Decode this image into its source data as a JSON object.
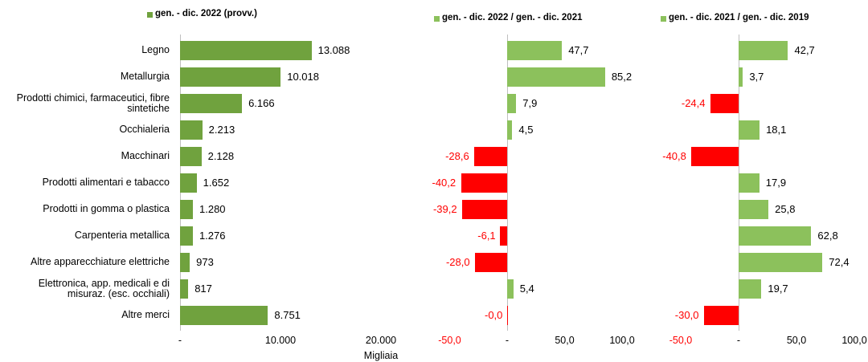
{
  "chart_data": [
    {
      "type": "hbar",
      "legend": "gen. - dic. 2022 (provv.)",
      "color": "#70a23e",
      "categories": [
        "Legno",
        "Metallurgia",
        "Prodotti chimici, farmaceutici, fibre sintetiche",
        "Occhialeria",
        "Macchinari",
        "Prodotti alimentari e tabacco",
        "Prodotti in gomma o plastica",
        "Carpenteria metallica",
        "Altre apparecchiature elettriche",
        "Elettronica, app. medicali e di misuraz. (esc. occhiali)",
        "Altre merci"
      ],
      "values": [
        13088,
        10018,
        6166,
        2213,
        2128,
        1652,
        1280,
        1276,
        973,
        817,
        8751
      ],
      "value_labels": [
        "13.088",
        "10.018",
        "6.166",
        "2.213",
        "2.128",
        "1.652",
        "1.280",
        "1.276",
        "973",
        "817",
        "8.751"
      ],
      "xlim": [
        0,
        20000
      ],
      "xticks": [
        {
          "value": 0,
          "label": "-"
        },
        {
          "value": 10000,
          "label": "10.000"
        },
        {
          "value": 20000,
          "label": "20.000"
        }
      ],
      "xlabel": "Migliaia"
    },
    {
      "type": "hbar",
      "legend": "gen. - dic. 2022 / gen. - dic. 2021",
      "color": "#8cc15c",
      "negative_color": "#ff0000",
      "values": [
        47.7,
        85.2,
        7.9,
        4.5,
        -28.6,
        -40.2,
        -39.2,
        -6.1,
        -28.0,
        5.4,
        -0.0
      ],
      "value_labels": [
        "47,7",
        "85,2",
        "7,9",
        "4,5",
        "-28,6",
        "-40,2",
        "-39,2",
        "-6,1",
        "-28,0",
        "5,4",
        "-0,0"
      ],
      "xlim": [
        -50,
        100
      ],
      "xticks": [
        {
          "value": -50,
          "label": "-50,0"
        },
        {
          "value": 0,
          "label": "-"
        },
        {
          "value": 50,
          "label": "50,0"
        },
        {
          "value": 100,
          "label": "100,0"
        }
      ]
    },
    {
      "type": "hbar",
      "legend": "gen. - dic. 2021 / gen. - dic. 2019",
      "color": "#8cc15c",
      "negative_color": "#ff0000",
      "values": [
        42.7,
        3.7,
        -24.4,
        18.1,
        -40.8,
        17.9,
        25.8,
        62.8,
        72.4,
        19.7,
        -30.0
      ],
      "value_labels": [
        "42,7",
        "3,7",
        "-24,4",
        "18,1",
        "-40,8",
        "17,9",
        "25,8",
        "62,8",
        "72,4",
        "19,7",
        "-30,0"
      ],
      "xlim": [
        -50,
        100
      ],
      "xticks": [
        {
          "value": -50,
          "label": "-50,0"
        },
        {
          "value": 0,
          "label": "-"
        },
        {
          "value": 50,
          "label": "50,0"
        },
        {
          "value": 100,
          "label": "100,0"
        }
      ]
    }
  ]
}
